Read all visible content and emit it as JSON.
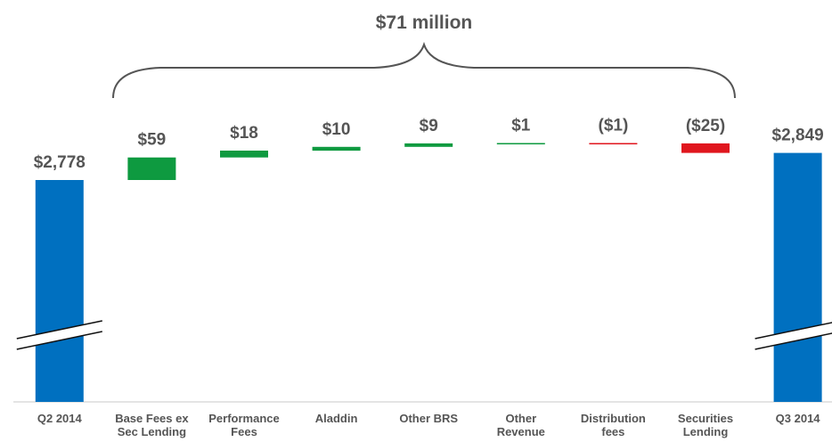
{
  "chart_data": {
    "type": "waterfall",
    "unit": "$ millions",
    "total_change_label": "$71 million",
    "colors": {
      "anchor": "#0070C0",
      "increase": "#0E9A40",
      "decrease": "#E0161E",
      "label": "#555555"
    },
    "categories": [
      {
        "lines": [
          "Q2 2014"
        ],
        "value": 2778,
        "kind": "anchor",
        "label": "$2,778"
      },
      {
        "lines": [
          "Base Fees ex",
          "Sec Lending"
        ],
        "value": 59,
        "kind": "increase",
        "label": "$59"
      },
      {
        "lines": [
          "Performance",
          "Fees"
        ],
        "value": 18,
        "kind": "increase",
        "label": "$18"
      },
      {
        "lines": [
          "Aladdin"
        ],
        "value": 10,
        "kind": "increase",
        "label": "$10"
      },
      {
        "lines": [
          "Other BRS"
        ],
        "value": 9,
        "kind": "increase",
        "label": "$9"
      },
      {
        "lines": [
          "Other",
          "Revenue"
        ],
        "value": 1,
        "kind": "increase",
        "label": "$1"
      },
      {
        "lines": [
          "Distribution",
          "fees"
        ],
        "value": -1,
        "kind": "decrease",
        "label": "($1)"
      },
      {
        "lines": [
          "Securities",
          "Lending"
        ],
        "value": -25,
        "kind": "decrease",
        "label": "($25)"
      },
      {
        "lines": [
          "Q3 2014"
        ],
        "value": 2849,
        "kind": "anchor",
        "label": "$2,849"
      }
    ],
    "axis_break": true,
    "gridlines": false
  }
}
